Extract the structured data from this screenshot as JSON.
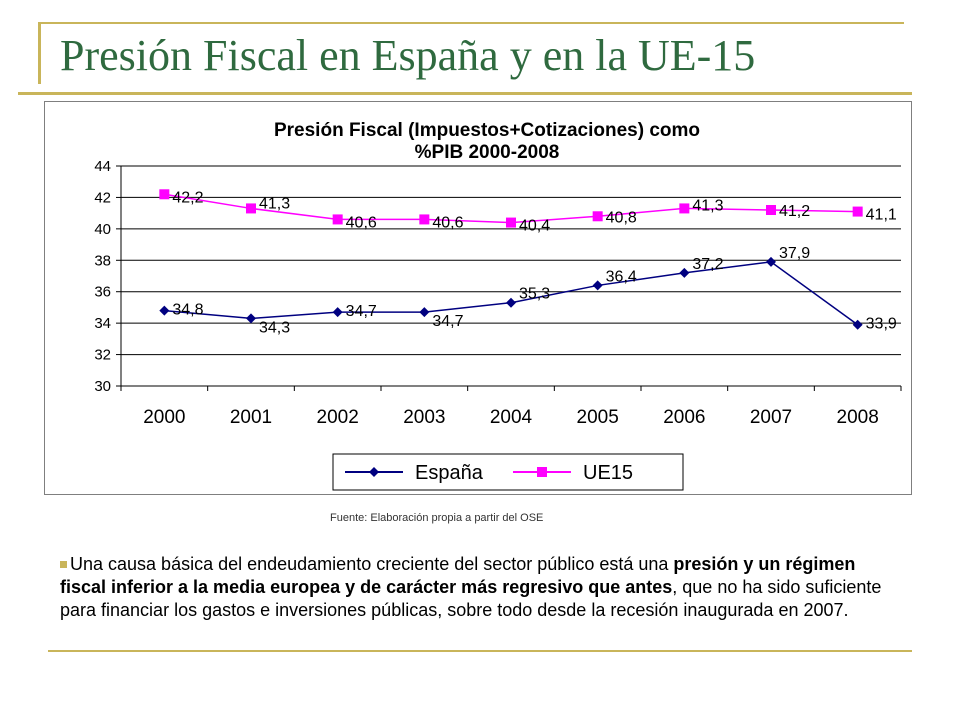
{
  "slide": {
    "title": "Presión Fiscal en España y en la UE-15",
    "source": "Fuente: Elaboración propia a partir del OSE",
    "bullet": {
      "lead": "Una causa básica del endeudamiento creciente del sector público está una ",
      "bold": "presión y un régimen fiscal inferior a la media europea y de carácter más regresivo que antes",
      "tail": ", que no ha sido suficiente para financiar los gastos e inversiones públicas, sobre todo desde la recesión inaugurada en 2007."
    }
  },
  "colors": {
    "accent": "#c9b55a",
    "title": "#2f6a3f",
    "espana": "#000080",
    "ue15": "#ff00ff"
  },
  "chart_data": {
    "type": "line",
    "title_lines": [
      "Presión Fiscal (Impuestos+Cotizaciones) como",
      "%PIB 2000-2008"
    ],
    "categories": [
      "2000",
      "2001",
      "2002",
      "2003",
      "2004",
      "2005",
      "2006",
      "2007",
      "2008"
    ],
    "ylim": [
      30,
      44
    ],
    "yticks": [
      30,
      32,
      34,
      36,
      38,
      40,
      42,
      44
    ],
    "grid": "horizontal",
    "legend_position": "bottom",
    "series": [
      {
        "name": "España",
        "marker": "diamond",
        "values": [
          34.8,
          34.3,
          34.7,
          34.7,
          35.3,
          36.4,
          37.2,
          37.9,
          33.9
        ],
        "labels": [
          "34,8",
          "34,3",
          "34,7",
          "34,7",
          "35,3",
          "36,4",
          "37,2",
          "37,9",
          "33,9"
        ]
      },
      {
        "name": "UE15",
        "marker": "square",
        "values": [
          42.2,
          41.3,
          40.6,
          40.6,
          40.4,
          40.8,
          41.3,
          41.2,
          41.1
        ],
        "labels": [
          "42,2",
          "41,3",
          "40,6",
          "40,6",
          "40,4",
          "40,8",
          "41,3",
          "41,2",
          "41,1"
        ]
      }
    ]
  }
}
